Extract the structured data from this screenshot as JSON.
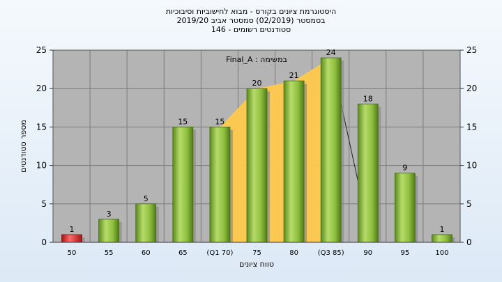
{
  "chart_data": {
    "type": "bar",
    "title": [
      "היסטוגרמת ציונים בקורס - מבוא לחישוביות וסיבוכיות",
      "בסמסטר  (02/2019)  סמסטר אביב 2019/20",
      "סטודנטים רשומים - 146"
    ],
    "annotation": "במשימה : Final_A",
    "xlabel": "טווח ציונים",
    "ylabel": "מספר סטודנטים",
    "categories": [
      "50",
      "55",
      "60",
      "65",
      "(Q1 70)",
      "75",
      "80",
      "(Q3 85)",
      "90",
      "95",
      "100"
    ],
    "values": [
      1,
      3,
      5,
      15,
      15,
      20,
      21,
      24,
      18,
      9,
      1
    ],
    "highlight_index": 0,
    "ylim": [
      0,
      25
    ],
    "yticks": [
      0,
      5,
      10,
      15,
      20,
      25
    ],
    "right_axis": true,
    "grid": true,
    "quartile_band": {
      "from_index": 4,
      "to_index": 7,
      "color": "#ffc94d"
    },
    "colors": {
      "bar": "#8fbf3f",
      "bar_highlight": "#e02a2a",
      "plot_bg": "#b4b4b4",
      "grid": "#7a7a7a"
    }
  }
}
